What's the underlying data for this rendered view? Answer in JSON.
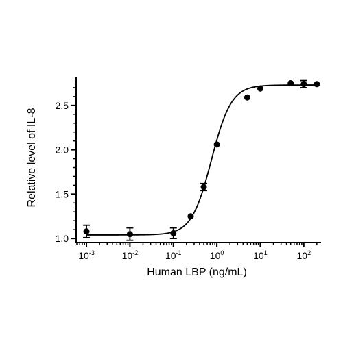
{
  "chart_data": {
    "type": "scatter",
    "title": "",
    "xlabel": "Human LBP (ng/mL)",
    "ylabel": "Relative level of IL-8",
    "x_scale": "log10",
    "xlim": [
      0.0006,
      250
    ],
    "ylim": [
      0.97,
      2.8
    ],
    "x_ticks": [
      {
        "base": "10",
        "exp": "-3",
        "value": 0.001
      },
      {
        "base": "10",
        "exp": "-2",
        "value": 0.01
      },
      {
        "base": "10",
        "exp": "-1",
        "value": 0.1
      },
      {
        "base": "10",
        "exp": "0",
        "value": 1
      },
      {
        "base": "10",
        "exp": "1",
        "value": 10
      },
      {
        "base": "10",
        "exp": "2",
        "value": 100
      }
    ],
    "y_ticks": [
      {
        "label": "1.0",
        "value": 1.0
      },
      {
        "label": "1.5",
        "value": 1.5
      },
      {
        "label": "2.0",
        "value": 2.0
      },
      {
        "label": "2.5",
        "value": 2.5
      }
    ],
    "series": [
      {
        "points": [
          {
            "x": 0.001,
            "y": 1.08,
            "err": 0.07
          },
          {
            "x": 0.01,
            "y": 1.05,
            "err": 0.07
          },
          {
            "x": 0.1,
            "y": 1.06,
            "err": 0.06
          },
          {
            "x": 0.25,
            "y": 1.25,
            "err": 0
          },
          {
            "x": 0.5,
            "y": 1.58,
            "err": 0.04
          },
          {
            "x": 1,
            "y": 2.06,
            "err": 0
          },
          {
            "x": 5,
            "y": 2.59,
            "err": 0
          },
          {
            "x": 10,
            "y": 2.69,
            "err": 0
          },
          {
            "x": 50,
            "y": 2.75,
            "err": 0
          },
          {
            "x": 100,
            "y": 2.74,
            "err": 0.04
          },
          {
            "x": 200,
            "y": 2.74,
            "err": 0
          }
        ]
      }
    ],
    "fit": {
      "type": "4PL",
      "bottom": 1.04,
      "top": 2.73,
      "ec50": 0.75,
      "hill": 1.9
    },
    "grid": false,
    "legend": "none"
  }
}
